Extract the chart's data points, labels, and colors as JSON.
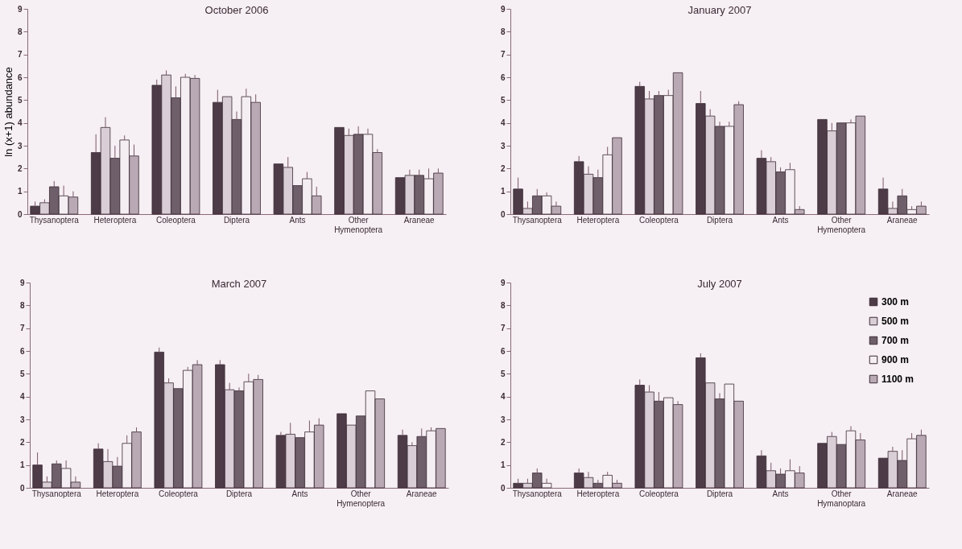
{
  "chart_data": [
    {
      "type": "bar",
      "title": "October 2006",
      "ylabel": "ln (x+1) abundance",
      "categories": [
        "Thysanoptera",
        "Heteroptera",
        "Coleoptera",
        "Diptera",
        "Ants",
        "Other Hymenoptera",
        "Araneae"
      ],
      "ylim": [
        0,
        9
      ],
      "yticks": [
        0,
        1,
        2,
        3,
        4,
        5,
        6,
        7,
        8,
        9
      ],
      "grid": false,
      "legend": false,
      "series": [
        {
          "color": "#4d3c48",
          "values": [
            0.35,
            2.7,
            5.65,
            4.9,
            2.2,
            3.8,
            1.6
          ],
          "errors": [
            [
              0.35,
              0.55
            ],
            [
              2.7,
              3.5
            ],
            [
              5.65,
              5.9
            ],
            [
              4.9,
              5.45
            ],
            null,
            null,
            null
          ]
        },
        {
          "color": "#d9cdd6",
          "values": [
            0.5,
            3.8,
            6.1,
            5.15,
            2.05,
            3.45,
            1.7
          ],
          "errors": [
            [
              0.5,
              0.65
            ],
            [
              3.8,
              4.25
            ],
            [
              6.1,
              6.3
            ],
            null,
            [
              2.05,
              2.5
            ],
            [
              3.45,
              3.75
            ],
            [
              1.7,
              1.95
            ]
          ]
        },
        {
          "color": "#6e5f6a",
          "values": [
            1.2,
            2.45,
            5.1,
            4.15,
            1.25,
            3.5,
            1.7
          ],
          "errors": [
            [
              1.2,
              1.45
            ],
            [
              2.45,
              3.0
            ],
            [
              5.1,
              5.6
            ],
            [
              4.15,
              4.5
            ],
            null,
            [
              3.5,
              3.85
            ],
            [
              1.7,
              1.95
            ]
          ]
        },
        {
          "color": "#f4eef2",
          "values": [
            0.8,
            3.25,
            6.0,
            5.15,
            1.55,
            3.5,
            1.55
          ],
          "errors": [
            [
              0.8,
              1.25
            ],
            [
              3.25,
              3.45
            ],
            [
              6.0,
              6.15
            ],
            [
              5.15,
              5.5
            ],
            [
              1.55,
              1.85
            ],
            [
              3.5,
              3.75
            ],
            [
              1.55,
              2.0
            ]
          ]
        },
        {
          "color": "#b9a9b4",
          "values": [
            0.75,
            2.55,
            5.95,
            4.9,
            0.8,
            2.7,
            1.8
          ],
          "errors": [
            [
              0.75,
              1.0
            ],
            [
              2.55,
              3.05
            ],
            [
              5.95,
              6.1
            ],
            [
              4.9,
              5.25
            ],
            [
              0.8,
              1.2
            ],
            [
              2.7,
              2.85
            ],
            [
              1.8,
              2.0
            ]
          ]
        }
      ]
    },
    {
      "type": "bar",
      "title": "January 2007",
      "categories": [
        "Thysanoptera",
        "Heteroptera",
        "Coleoptera",
        "Diptera",
        "Ants",
        "Other Hymenoptera",
        "Araneae"
      ],
      "ylim": [
        0,
        9
      ],
      "yticks": [
        0,
        1,
        2,
        3,
        4,
        5,
        6,
        7,
        8,
        9
      ],
      "grid": false,
      "legend": false,
      "series": [
        {
          "color": "#4d3c48",
          "values": [
            1.1,
            2.3,
            5.6,
            4.85,
            2.45,
            4.15,
            1.1
          ],
          "errors": [
            [
              1.1,
              1.6
            ],
            [
              2.3,
              2.55
            ],
            [
              5.6,
              5.8
            ],
            [
              4.85,
              5.4
            ],
            [
              2.45,
              2.8
            ],
            null,
            [
              1.1,
              1.6
            ]
          ]
        },
        {
          "color": "#d9cdd6",
          "values": [
            0.25,
            1.75,
            5.05,
            4.3,
            2.3,
            3.65,
            0.25
          ],
          "errors": [
            [
              0.25,
              0.55
            ],
            [
              1.75,
              2.1
            ],
            [
              5.05,
              5.4
            ],
            [
              4.3,
              4.6
            ],
            [
              2.3,
              2.5
            ],
            [
              3.65,
              4.0
            ],
            [
              0.25,
              0.55
            ]
          ]
        },
        {
          "color": "#6e5f6a",
          "values": [
            0.8,
            1.6,
            5.2,
            3.85,
            1.85,
            4.0,
            0.8
          ],
          "errors": [
            [
              0.8,
              1.1
            ],
            [
              1.6,
              1.95
            ],
            [
              5.2,
              5.4
            ],
            [
              3.85,
              4.05
            ],
            [
              1.85,
              2.05
            ],
            null,
            [
              0.8,
              1.1
            ]
          ]
        },
        {
          "color": "#f4eef2",
          "values": [
            0.8,
            2.6,
            5.2,
            3.85,
            1.95,
            4.0,
            0.2
          ],
          "errors": [
            [
              0.8,
              0.95
            ],
            [
              2.6,
              2.95
            ],
            [
              5.2,
              5.45
            ],
            [
              3.85,
              4.05
            ],
            [
              1.95,
              2.25
            ],
            [
              4.0,
              4.15
            ],
            [
              0.2,
              0.35
            ]
          ]
        },
        {
          "color": "#b9a9b4",
          "values": [
            0.35,
            3.35,
            6.2,
            4.8,
            0.2,
            4.3,
            0.35
          ],
          "errors": [
            [
              0.35,
              0.55
            ],
            null,
            null,
            [
              4.8,
              4.95
            ],
            [
              0.2,
              0.35
            ],
            null,
            [
              0.35,
              0.55
            ]
          ]
        }
      ]
    },
    {
      "type": "bar",
      "title": "March 2007",
      "categories": [
        "Thysanoptera",
        "Heteroptera",
        "Coleoptera",
        "Diptera",
        "Ants",
        "Other Hymenoptera",
        "Araneae"
      ],
      "ylim": [
        0,
        9
      ],
      "yticks": [
        0,
        1,
        2,
        3,
        4,
        5,
        6,
        7,
        8,
        9
      ],
      "grid": false,
      "legend": false,
      "series": [
        {
          "color": "#4d3c48",
          "values": [
            1.0,
            1.7,
            5.95,
            5.4,
            2.3,
            3.25,
            2.3
          ],
          "errors": [
            [
              1.0,
              1.55
            ],
            [
              1.7,
              1.95
            ],
            [
              5.95,
              6.15
            ],
            [
              5.4,
              5.6
            ],
            [
              2.3,
              2.45
            ],
            null,
            [
              2.3,
              2.55
            ]
          ]
        },
        {
          "color": "#d9cdd6",
          "values": [
            0.25,
            1.15,
            4.6,
            4.3,
            2.35,
            2.75,
            1.85
          ],
          "errors": [
            [
              0.25,
              0.5
            ],
            [
              1.15,
              1.7
            ],
            [
              4.6,
              4.8
            ],
            [
              4.3,
              4.6
            ],
            [
              2.35,
              2.85
            ],
            null,
            [
              1.85,
              2.0
            ]
          ]
        },
        {
          "color": "#6e5f6a",
          "values": [
            1.05,
            0.95,
            4.35,
            4.25,
            2.2,
            3.15,
            2.25
          ],
          "errors": [
            [
              1.05,
              1.2
            ],
            [
              0.95,
              1.35
            ],
            null,
            [
              4.25,
              4.4
            ],
            null,
            null,
            [
              2.25,
              2.6
            ]
          ]
        },
        {
          "color": "#f4eef2",
          "values": [
            0.85,
            1.95,
            5.15,
            4.65,
            2.45,
            4.25,
            2.5
          ],
          "errors": [
            [
              0.85,
              1.2
            ],
            [
              1.95,
              2.3
            ],
            [
              5.15,
              5.3
            ],
            [
              4.65,
              5.0
            ],
            [
              2.45,
              2.95
            ],
            null,
            [
              2.5,
              2.65
            ]
          ]
        },
        {
          "color": "#b9a9b4",
          "values": [
            0.25,
            2.45,
            5.4,
            4.75,
            2.75,
            3.9,
            2.6
          ],
          "errors": [
            [
              0.25,
              0.5
            ],
            [
              2.45,
              2.65
            ],
            [
              5.4,
              5.6
            ],
            [
              4.75,
              4.95
            ],
            [
              2.75,
              3.05
            ],
            null,
            null
          ]
        }
      ]
    },
    {
      "type": "bar",
      "title": "July 2007",
      "categories": [
        "Thysanoptera",
        "Heteroptera",
        "Coleoptera",
        "Diptera",
        "Ants",
        "Other Hymanoptara",
        "Araneae"
      ],
      "ylim": [
        0,
        9
      ],
      "yticks": [
        0,
        1,
        2,
        3,
        4,
        5,
        6,
        7,
        8,
        9
      ],
      "grid": false,
      "legend": "top right",
      "series": [
        {
          "name": "300 m",
          "color": "#4d3c48",
          "values": [
            0.2,
            0.65,
            4.5,
            5.7,
            1.4,
            1.95,
            1.3
          ],
          "errors": [
            [
              0.2,
              0.4
            ],
            [
              0.65,
              0.85
            ],
            [
              4.5,
              4.75
            ],
            [
              5.7,
              5.9
            ],
            [
              1.4,
              1.65
            ],
            null,
            null
          ]
        },
        {
          "name": "500 m",
          "color": "#d9cdd6",
          "values": [
            0.2,
            0.45,
            4.2,
            4.6,
            0.75,
            2.25,
            1.6
          ],
          "errors": [
            [
              0.2,
              0.4
            ],
            [
              0.45,
              0.7
            ],
            [
              4.2,
              4.5
            ],
            null,
            [
              0.75,
              1.1
            ],
            [
              2.25,
              2.45
            ],
            [
              1.6,
              1.8
            ]
          ]
        },
        {
          "name": "700 m",
          "color": "#6e5f6a",
          "values": [
            0.65,
            0.2,
            3.8,
            3.9,
            0.6,
            1.9,
            1.2
          ],
          "errors": [
            [
              0.65,
              0.85
            ],
            [
              0.2,
              0.35
            ],
            [
              3.8,
              4.2
            ],
            [
              3.9,
              4.15
            ],
            [
              0.6,
              0.85
            ],
            null,
            [
              1.2,
              1.65
            ]
          ]
        },
        {
          "name": "900 m",
          "color": "#f4eef2",
          "values": [
            0.2,
            0.55,
            3.95,
            4.55,
            0.75,
            2.5,
            2.15
          ],
          "errors": [
            [
              0.2,
              0.4
            ],
            [
              0.55,
              0.7
            ],
            null,
            null,
            [
              0.75,
              1.25
            ],
            [
              2.5,
              2.7
            ],
            [
              2.15,
              2.4
            ]
          ]
        },
        {
          "name": "1100 m",
          "color": "#b9a9b4",
          "values": [
            null,
            0.2,
            3.65,
            3.8,
            0.65,
            2.1,
            2.3
          ],
          "errors": [
            null,
            [
              0.2,
              0.35
            ],
            [
              3.65,
              3.8
            ],
            null,
            [
              0.65,
              0.95
            ],
            [
              2.1,
              2.4
            ],
            [
              2.3,
              2.55
            ]
          ]
        }
      ]
    }
  ]
}
